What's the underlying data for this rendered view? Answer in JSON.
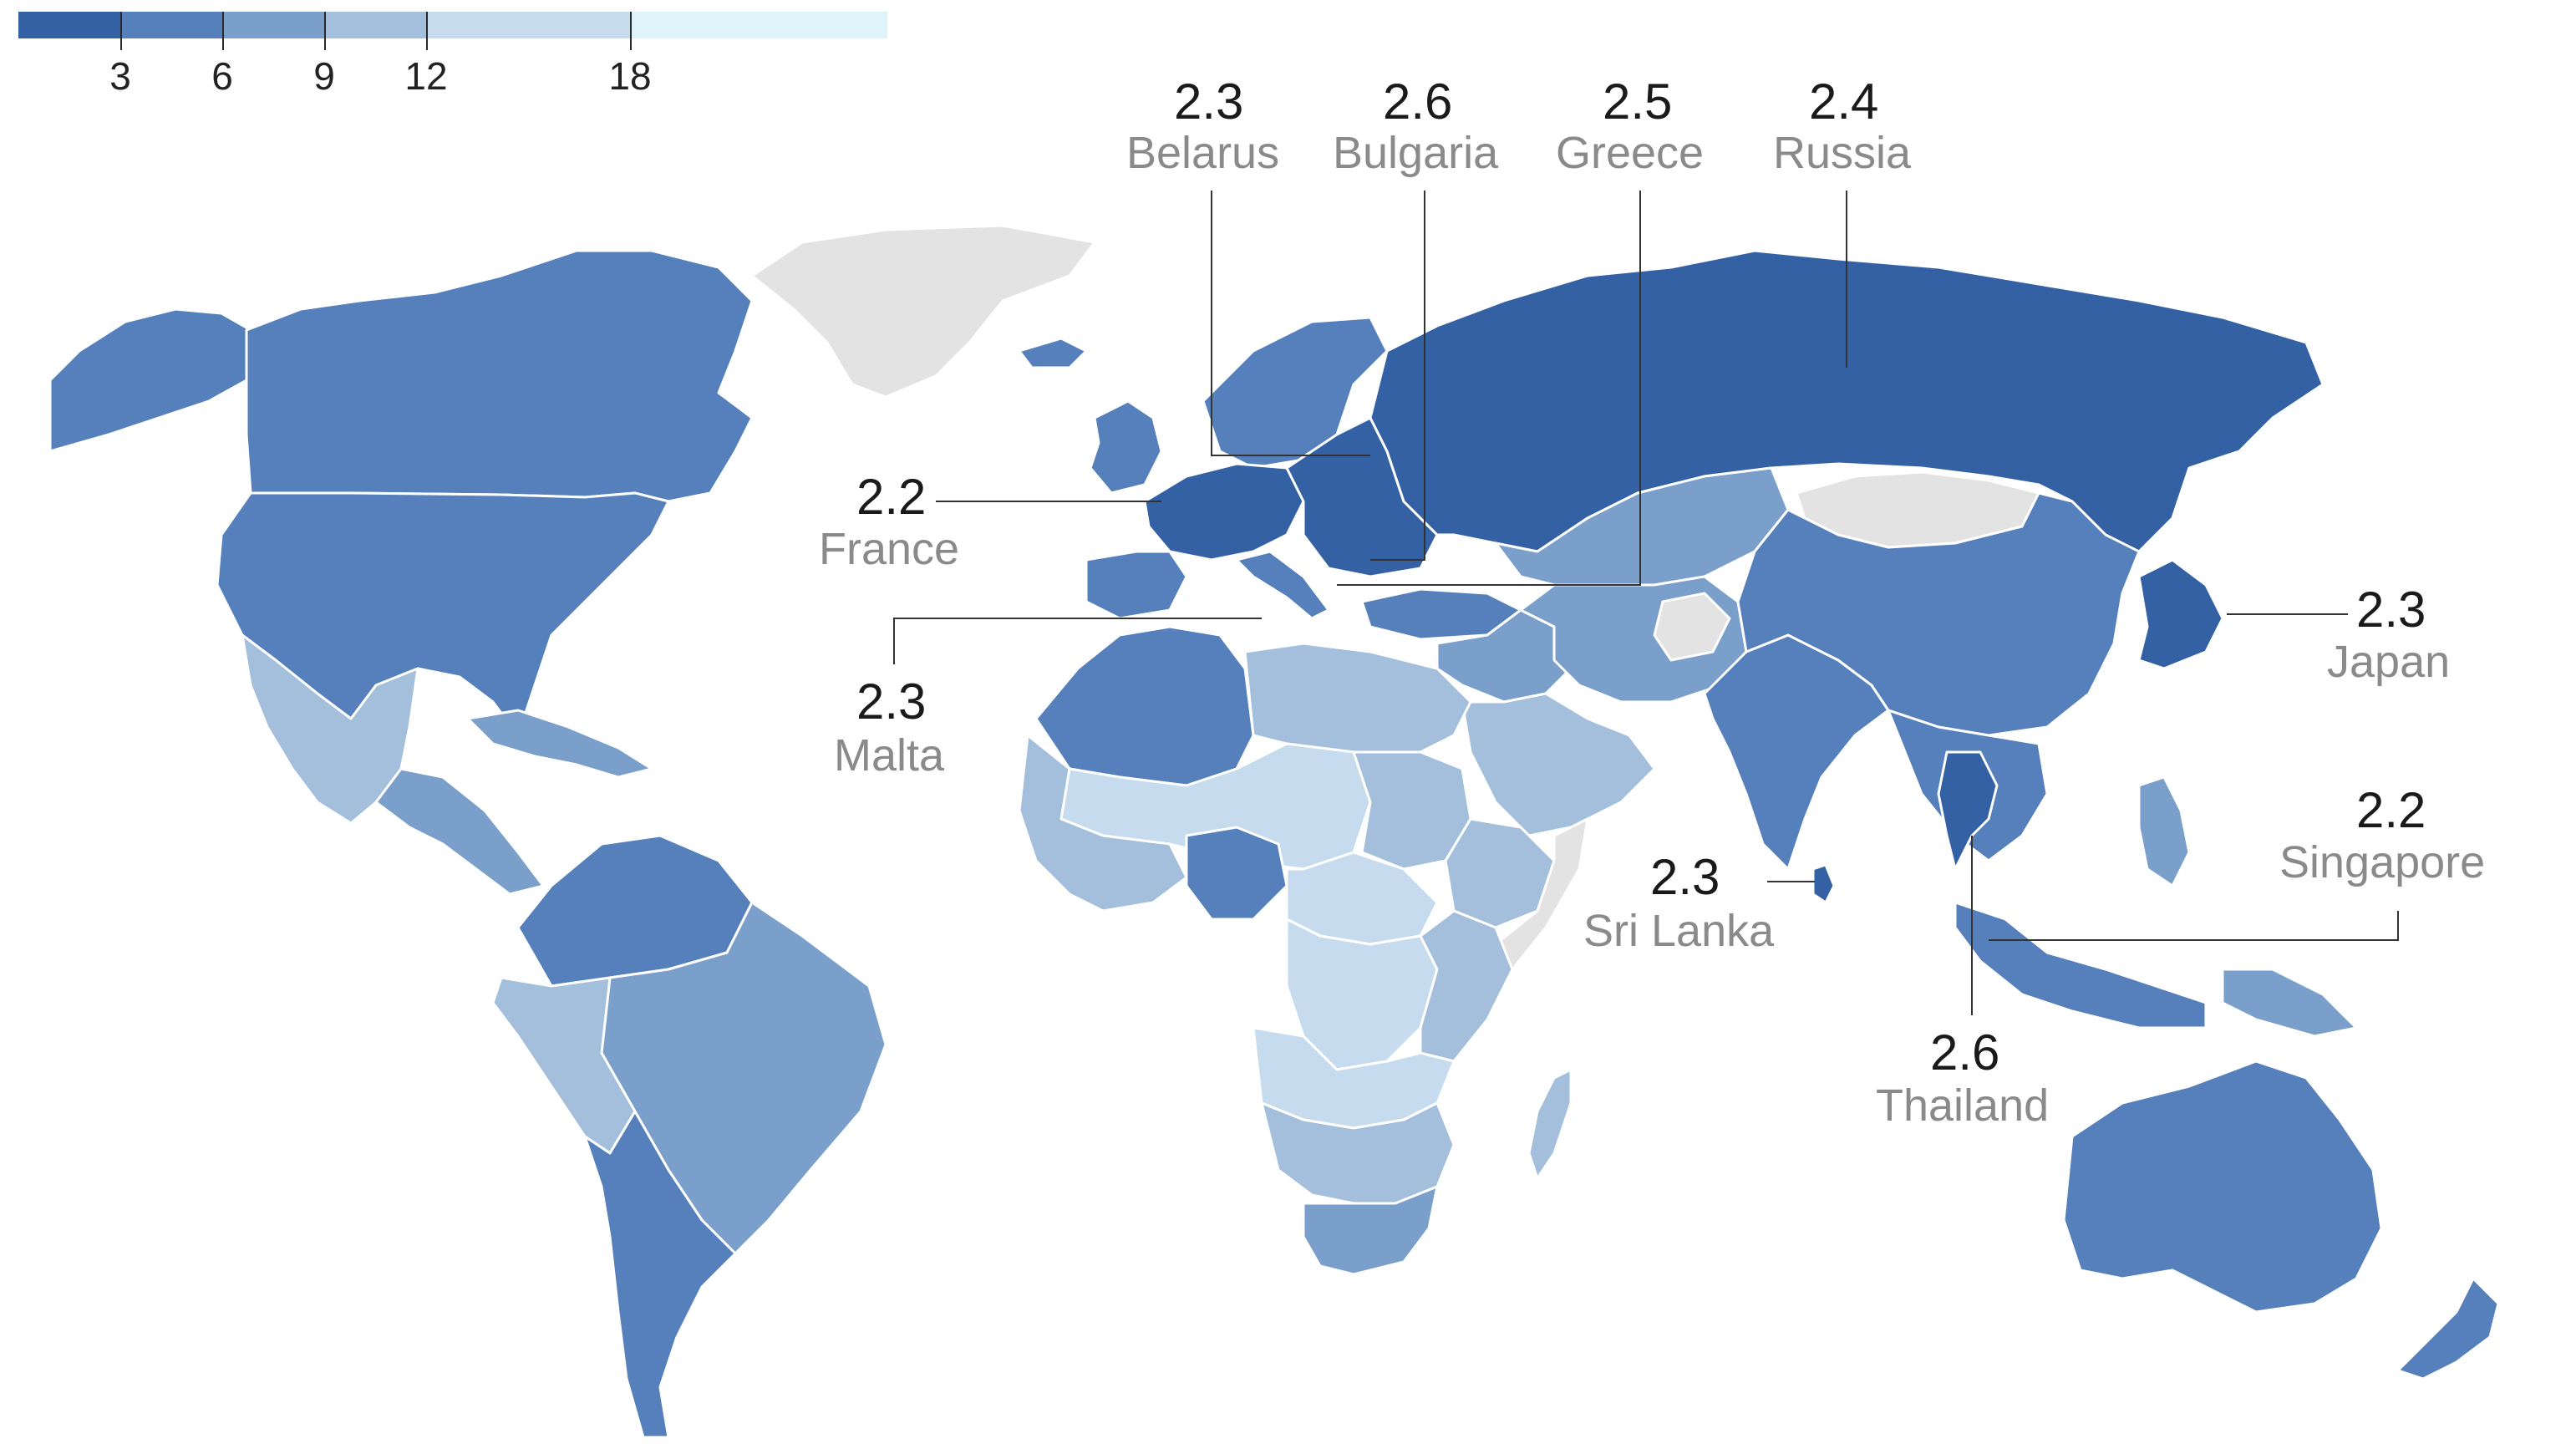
{
  "legend": {
    "ticks": [
      "3",
      "6",
      "9",
      "12",
      "18"
    ],
    "colors": [
      "#3461a4",
      "#5680bb",
      "#7b9fcb",
      "#a3bfdc",
      "#c6dcee",
      "#dff3fb"
    ]
  },
  "colors": {
    "no_data": "#e3e3e3",
    "annotation_line": "#333333",
    "border": "#ffffff",
    "value_text": "#1a1a1a",
    "name_text": "#8a8a8a"
  },
  "annotations": [
    {
      "id": "belarus",
      "value": "2.3",
      "country": "Belarus"
    },
    {
      "id": "bulgaria",
      "value": "2.6",
      "country": "Bulgaria"
    },
    {
      "id": "greece",
      "value": "2.5",
      "country": "Greece"
    },
    {
      "id": "russia",
      "value": "2.4",
      "country": "Russia"
    },
    {
      "id": "france",
      "value": "2.2",
      "country": "France"
    },
    {
      "id": "malta",
      "value": "2.3",
      "country": "Malta"
    },
    {
      "id": "japan",
      "value": "2.3",
      "country": "Japan"
    },
    {
      "id": "sri_lanka",
      "value": "2.3",
      "country": "Sri Lanka"
    },
    {
      "id": "singapore",
      "value": "2.2",
      "country": "Singapore"
    },
    {
      "id": "thailand",
      "value": "2.6",
      "country": "Thailand"
    }
  ],
  "regions": [
    {
      "id": "alaska",
      "shade": 1
    },
    {
      "id": "canada",
      "shade": 1
    },
    {
      "id": "usa",
      "shade": 1
    },
    {
      "id": "greenland",
      "shade": "none"
    },
    {
      "id": "mexico",
      "shade": 3
    },
    {
      "id": "central-america",
      "shade": 2
    },
    {
      "id": "caribbean",
      "shade": 2
    },
    {
      "id": "north-south-america",
      "shade": 1
    },
    {
      "id": "brazil",
      "shade": 2
    },
    {
      "id": "andes",
      "shade": 3
    },
    {
      "id": "southern-cone",
      "shade": 1
    },
    {
      "id": "iceland",
      "shade": 1
    },
    {
      "id": "uk-ireland",
      "shade": 1
    },
    {
      "id": "scandinavia",
      "shade": 1
    },
    {
      "id": "western-europe",
      "shade": 0
    },
    {
      "id": "iberia",
      "shade": 1
    },
    {
      "id": "italy",
      "shade": 1
    },
    {
      "id": "eastern-europe",
      "shade": 0
    },
    {
      "id": "russia",
      "shade": 0
    },
    {
      "id": "turkey",
      "shade": 1
    },
    {
      "id": "caucasus-central-asia",
      "shade": 2
    },
    {
      "id": "mongolia",
      "shade": "none"
    },
    {
      "id": "middle-east",
      "shade": 2
    },
    {
      "id": "arabia",
      "shade": 3
    },
    {
      "id": "iran-afghanistan",
      "shade": 2
    },
    {
      "id": "afghanistan",
      "shade": "none"
    },
    {
      "id": "india",
      "shade": 1
    },
    {
      "id": "sri-lanka",
      "shade": 0
    },
    {
      "id": "china",
      "shade": 1
    },
    {
      "id": "korea-japan",
      "shade": 0
    },
    {
      "id": "southeast-asia",
      "shade": 1
    },
    {
      "id": "thailand",
      "shade": 0
    },
    {
      "id": "indonesia",
      "shade": 1
    },
    {
      "id": "philippines",
      "shade": 2
    },
    {
      "id": "new-guinea",
      "shade": 2
    },
    {
      "id": "australia",
      "shade": 1
    },
    {
      "id": "new-zealand",
      "shade": 1
    },
    {
      "id": "north-africa",
      "shade": 1
    },
    {
      "id": "egypt-libya",
      "shade": 3
    },
    {
      "id": "sahel",
      "shade": 4
    },
    {
      "id": "west-africa",
      "shade": 3
    },
    {
      "id": "nigeria",
      "shade": 1
    },
    {
      "id": "sudan",
      "shade": 3
    },
    {
      "id": "ethiopia",
      "shade": 3
    },
    {
      "id": "somalia",
      "shade": "none"
    },
    {
      "id": "central-africa",
      "shade": 4
    },
    {
      "id": "congo",
      "shade": 4
    },
    {
      "id": "east-africa",
      "shade": 3
    },
    {
      "id": "angola-zambia",
      "shade": 4
    },
    {
      "id": "southern-africa",
      "shade": 3
    },
    {
      "id": "south-africa",
      "shade": 2
    },
    {
      "id": "madagascar",
      "shade": 3
    }
  ]
}
